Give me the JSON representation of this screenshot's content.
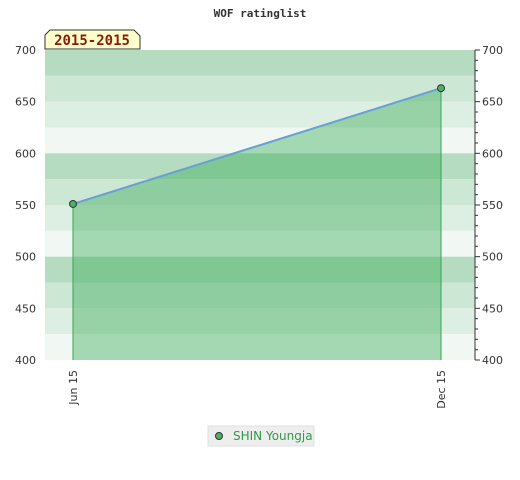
{
  "chart_data": {
    "type": "area",
    "title": "WOF ratinglist",
    "period_badge": "2015-2015",
    "categories": [
      "Jun 15",
      "Dec 15"
    ],
    "series": [
      {
        "name": "SHIN Youngja",
        "values": [
          551,
          663
        ]
      }
    ],
    "ylim": [
      400,
      700
    ],
    "yticks": [
      "400",
      "450",
      "500",
      "550",
      "600",
      "650",
      "700"
    ],
    "ytick_values": [
      400,
      450,
      500,
      550,
      600,
      650,
      700
    ],
    "grid": true,
    "right_axis": true,
    "legend_position": "bottom-center",
    "colors": {
      "line": "#6a9fd6",
      "area": "#2fa84f",
      "marker": "#4caf6a",
      "band_dark": "#b5dcc0",
      "band_light": "#f1f8f3",
      "badge_bg": "#ffffcc",
      "badge_text": "#8b1a10",
      "legend_text": "#2e9a48"
    }
  }
}
